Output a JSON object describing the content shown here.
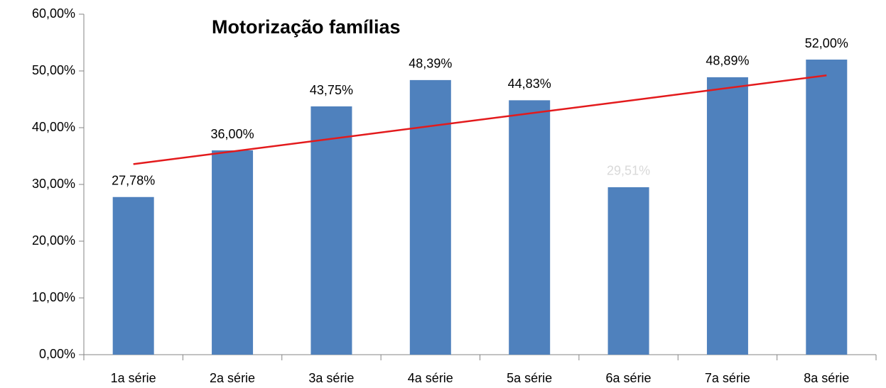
{
  "chart_data": {
    "type": "bar",
    "title": "Motorização famílias",
    "categories": [
      "1a série",
      "2a série",
      "3a série",
      "4a série",
      "5a série",
      "6a série",
      "7a série",
      "8a série"
    ],
    "values": [
      27.78,
      36.0,
      43.75,
      48.39,
      44.83,
      29.51,
      48.89,
      52.0
    ],
    "value_labels": [
      "27,78%",
      "36,00%",
      "43,75%",
      "48,39%",
      "44,83%",
      "29,51%",
      "48,89%",
      "52,00%"
    ],
    "value_label_colors": [
      "#000000",
      "#000000",
      "#000000",
      "#000000",
      "#000000",
      "#d9d9d9",
      "#000000",
      "#000000"
    ],
    "color": "#4f81bd",
    "trendline": {
      "kind": "linear",
      "color": "#e31a1c"
    },
    "ylim": [
      0,
      60
    ],
    "yticks": [
      {
        "value": 0,
        "label": "0,00%"
      },
      {
        "value": 10,
        "label": "10,00%"
      },
      {
        "value": 20,
        "label": "20,00%"
      },
      {
        "value": 30,
        "label": "30,00%"
      },
      {
        "value": 40,
        "label": "40,00%"
      },
      {
        "value": 50,
        "label": "50,00%"
      },
      {
        "value": 60,
        "label": "60,00%"
      }
    ],
    "grid": false
  }
}
